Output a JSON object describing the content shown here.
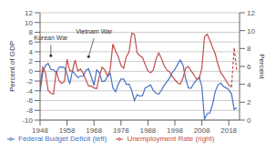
{
  "chart_data": {
    "type": "line",
    "ylabel": "Percent of GDP",
    "y2label": "Percent",
    "x": [
      1948,
      1949,
      1950,
      1951,
      1952,
      1953,
      1954,
      1955,
      1956,
      1957,
      1958,
      1959,
      1960,
      1961,
      1962,
      1963,
      1964,
      1965,
      1966,
      1967,
      1968,
      1969,
      1970,
      1971,
      1972,
      1973,
      1974,
      1975,
      1976,
      1977,
      1978,
      1979,
      1980,
      1981,
      1982,
      1983,
      1984,
      1985,
      1986,
      1987,
      1988,
      1989,
      1990,
      1991,
      1992,
      1993,
      1994,
      1995,
      1996,
      1997,
      1998,
      1999,
      2000,
      2001,
      2002,
      2003,
      2004,
      2005,
      2006,
      2007,
      2008,
      2009,
      2010,
      2011,
      2012,
      2013,
      2014,
      2015,
      2016,
      2017,
      2018,
      2019,
      2020,
      2021
    ],
    "xlim": [
      1948,
      2022
    ],
    "xticks": [
      1948,
      1958,
      1968,
      1978,
      1988,
      1998,
      2008,
      2018
    ],
    "ylim": [
      -10,
      12
    ],
    "yticks": [
      -10,
      -8,
      -6,
      -4,
      -2,
      0,
      2,
      4,
      6,
      8,
      10,
      12
    ],
    "y2lim": [
      0,
      12
    ],
    "y2ticks": [
      0,
      2,
      4,
      6,
      8,
      10,
      12
    ],
    "grid": true,
    "legend": "lower left",
    "series": [
      {
        "name": "Federal Budget Deficit (left)",
        "color": "#4472c4",
        "values": [
          -4.2,
          -0.3,
          1.2,
          1.6,
          0.4,
          0.3,
          -0.3,
          0.8,
          0.9,
          0.8,
          -0.6,
          -2.6,
          0.1,
          -0.6,
          -1.3,
          -1.0,
          -1.0,
          0.2,
          0.5,
          -1.1,
          -2.9,
          0.3,
          -0.3,
          -2.1,
          -2.0,
          -1.1,
          -0.4,
          -3.4,
          -4.2,
          -2.7,
          -1.6,
          -1.6,
          -2.7,
          -2.6,
          -3.9,
          -6.0,
          -4.8,
          -5.1,
          -5.0,
          -3.4,
          -3.1,
          -2.8,
          -3.9,
          -4.5,
          -4.7,
          -3.9,
          -2.9,
          -2.2,
          -1.4,
          -0.3,
          0.4,
          1.4,
          2.3,
          1.3,
          -1.5,
          -3.4,
          -3.5,
          -2.5,
          -1.8,
          -1.2,
          -3.1,
          -9.8,
          -8.7,
          -8.5,
          -6.8,
          -4.1,
          -2.8,
          -2.4,
          -3.1,
          -3.4,
          -3.8,
          -4.6,
          -7.8,
          -7.5
        ]
      },
      {
        "name": "Unemployment Rate (right)",
        "color": "#c0504d",
        "axis": "y2",
        "values": [
          3.8,
          5.9,
          5.3,
          3.3,
          3.0,
          2.9,
          5.5,
          4.4,
          4.1,
          4.3,
          6.8,
          5.5,
          5.5,
          6.7,
          5.5,
          5.7,
          5.2,
          4.5,
          3.8,
          3.8,
          3.6,
          3.5,
          4.9,
          5.9,
          5.6,
          4.9,
          5.6,
          8.5,
          7.7,
          7.1,
          6.1,
          5.8,
          7.1,
          7.6,
          9.7,
          9.6,
          7.5,
          7.2,
          7.0,
          6.2,
          5.5,
          5.3,
          5.6,
          6.8,
          7.5,
          6.9,
          6.1,
          5.6,
          5.4,
          4.9,
          4.5,
          4.2,
          4.0,
          4.7,
          5.8,
          6.0,
          5.5,
          5.1,
          4.6,
          4.6,
          5.8,
          9.3,
          9.6,
          8.9,
          8.1,
          7.4,
          6.2,
          5.3,
          4.9,
          4.4,
          3.9,
          3.7,
          null,
          null
        ]
      },
      {
        "color": "#c0504d",
        "axis": "y2",
        "line_style": "dashed",
        "values": [
          null,
          null,
          null,
          null,
          null,
          null,
          null,
          null,
          null,
          null,
          null,
          null,
          null,
          null,
          null,
          null,
          null,
          null,
          null,
          null,
          null,
          null,
          null,
          null,
          null,
          null,
          null,
          null,
          null,
          null,
          null,
          null,
          null,
          null,
          null,
          null,
          null,
          null,
          null,
          null,
          null,
          null,
          null,
          null,
          null,
          null,
          null,
          null,
          null,
          null,
          null,
          null,
          null,
          null,
          null,
          null,
          null,
          null,
          null,
          null,
          null,
          null,
          null,
          null,
          null,
          null,
          null,
          null,
          null,
          null,
          null,
          3.7,
          8.1,
          5.4
        ]
      }
    ],
    "annotations": [
      {
        "text": "Korean  War",
        "xy": [
          1952,
          3.2
        ],
        "xytext": [
          1952,
          5.4
        ]
      },
      {
        "text": "Vietnam  War",
        "xy": [
          1966,
          3.0
        ],
        "xytext": [
          1968,
          6.8
        ]
      }
    ]
  }
}
